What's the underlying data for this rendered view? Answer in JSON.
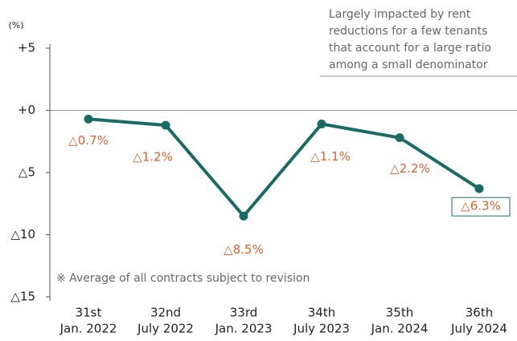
{
  "chart_data": {
    "type": "line",
    "unit_label": "(%)",
    "categories": [
      [
        "31st",
        "Jan. 2022"
      ],
      [
        "32nd",
        "July 2022"
      ],
      [
        "33rd",
        "Jan. 2023"
      ],
      [
        "34th",
        "July 2023"
      ],
      [
        "35th",
        "Jan. 2024"
      ],
      [
        "36th",
        "July 2024"
      ]
    ],
    "series": [
      {
        "color": "#1a6b68",
        "values": [
          -0.7,
          -1.2,
          -8.5,
          -1.1,
          -2.2,
          -6.3
        ],
        "value_labels": [
          "△0.7%",
          "△1.2%",
          "△8.5%",
          "△1.1%",
          "△2.2%",
          "△6.3%"
        ],
        "label_color": "#e0622e"
      }
    ],
    "ylim": [
      -15,
      5
    ],
    "yticks": [
      {
        "value": 5,
        "label": "+5"
      },
      {
        "value": 0,
        "label": "+0"
      },
      {
        "value": -5,
        "label": "△5"
      },
      {
        "value": -10,
        "label": "△10"
      },
      {
        "value": -15,
        "label": "△15"
      }
    ],
    "annotation": [
      "Largely impacted by rent",
      "reductions for a few tenants",
      "that account for a large ratio",
      "among a small denominator"
    ],
    "note": "※ Average of all contracts subject to revision"
  }
}
